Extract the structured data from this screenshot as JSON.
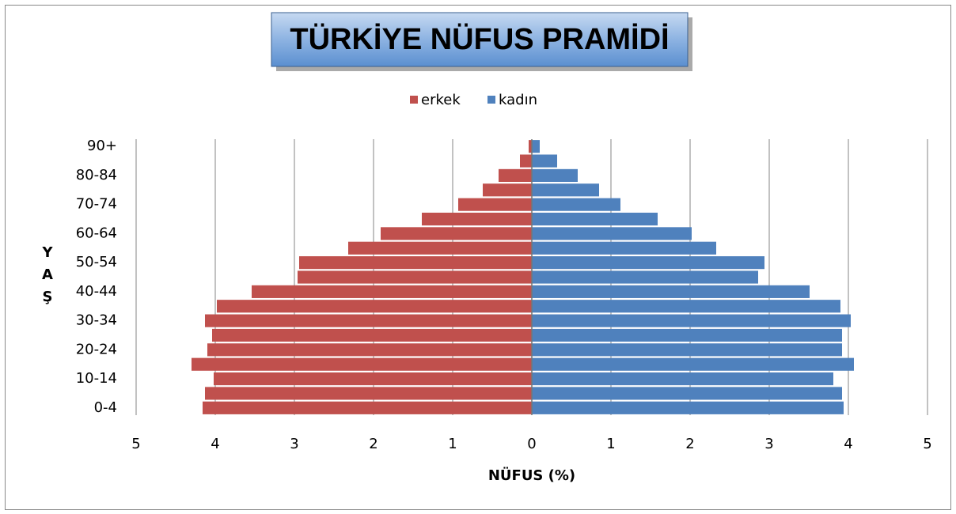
{
  "chart_data": {
    "type": "pyramid",
    "title": "TÜRKİYE NÜFUS PRAMİDİ",
    "x_label": "NÜFUS (%)",
    "y_label": "YAŞ",
    "categories": [
      "0-4",
      null,
      "10-14",
      null,
      "20-24",
      null,
      "30-34",
      null,
      "40-44",
      null,
      "50-54",
      null,
      "60-64",
      null,
      "70-74",
      null,
      "80-84",
      null,
      "90+"
    ],
    "series": [
      {
        "name": "erkek",
        "color": "#c0504d",
        "values": [
          -4.16,
          -4.13,
          -4.02,
          -4.3,
          -4.1,
          -4.04,
          -4.13,
          -3.98,
          -3.54,
          -2.96,
          -2.94,
          -2.32,
          -1.91,
          -1.39,
          -0.93,
          -0.62,
          -0.42,
          -0.15,
          -0.04
        ]
      },
      {
        "name": "kadın",
        "color": "#4f81bd",
        "values": [
          3.94,
          3.92,
          3.81,
          4.07,
          3.92,
          3.92,
          4.03,
          3.9,
          3.51,
          2.86,
          2.94,
          2.33,
          2.02,
          1.59,
          1.12,
          0.85,
          0.58,
          0.32,
          0.1
        ]
      }
    ],
    "xlim": [
      -5,
      5
    ],
    "xticks": [
      {
        "value": -5,
        "label": "5"
      },
      {
        "value": -4,
        "label": "4"
      },
      {
        "value": -3,
        "label": "3"
      },
      {
        "value": -2,
        "label": "2"
      },
      {
        "value": -1,
        "label": "1"
      },
      0,
      1,
      2,
      3,
      4,
      5
    ],
    "grid": true,
    "legend": "top"
  }
}
